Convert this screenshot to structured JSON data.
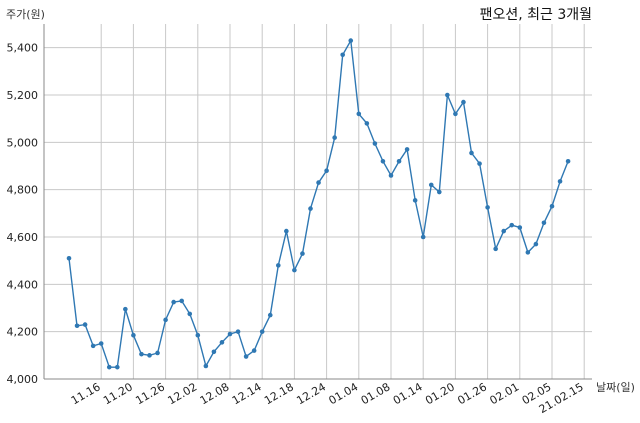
{
  "chart_data": {
    "type": "line",
    "title": "팬오션, 최근 3개월",
    "ylabel": "주가(원)",
    "xlabel": "날짜(일)",
    "ylim": [
      4000,
      5500
    ],
    "yticks": [
      4000,
      4200,
      4400,
      4600,
      4800,
      5000,
      5200,
      5400
    ],
    "ytick_labels": [
      "4,000",
      "4,200",
      "4,400",
      "4,600",
      "4,800",
      "5,000",
      "5,200",
      "5,400"
    ],
    "xtick_labels": [
      "11.16",
      "11.20",
      "11.26",
      "12.02",
      "12.08",
      "12.14",
      "12.18",
      "12.24",
      "01.04",
      "01.08",
      "01.14",
      "01.20",
      "01.26",
      "02.01",
      "02.05",
      "21.02.15"
    ],
    "xtick_positions": [
      4,
      8,
      12,
      16,
      20,
      24,
      28,
      32,
      36,
      40,
      44,
      48,
      52,
      56,
      60,
      64
    ],
    "grid": true,
    "line_color": "#2f78b3",
    "series": [
      {
        "values": [
          4510,
          4225,
          4230,
          4140,
          4150,
          4050,
          4050,
          4295,
          4185,
          4105,
          4100,
          4110,
          4250,
          4325,
          4330,
          4275,
          4185,
          4055,
          4115,
          4155,
          4190,
          4200,
          4095,
          4120,
          4200,
          4270,
          4480,
          4625,
          4460,
          4530,
          4720,
          4830,
          4880,
          5020,
          5370,
          5430,
          5120,
          5080,
          4995,
          4920,
          4860,
          4920,
          4970,
          4755,
          4600,
          4820,
          4790,
          5200,
          5120,
          5170,
          4955,
          4910,
          4725,
          4550,
          4625,
          4650,
          4640,
          4535,
          4570,
          4660,
          4730,
          4835,
          4920
        ]
      }
    ]
  }
}
